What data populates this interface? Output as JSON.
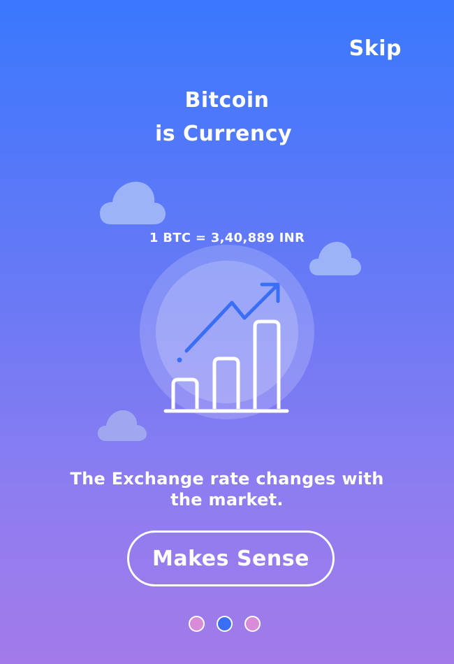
{
  "header": {
    "skip_label": "Skip"
  },
  "onboarding": {
    "title_line1": "Bitcoin",
    "title_line2": "is Currency",
    "exchange_rate": "1 BTC = 3,40,889 INR",
    "description": "The Exchange rate changes with the market.",
    "cta_label": "Makes Sense",
    "illustration_icon": "growth-chart-icon",
    "cloud_icon": "cloud-icon"
  },
  "pagination": {
    "total": 3,
    "active_index": 1,
    "dots": [
      {
        "state": "inactive",
        "color": "#d98ad9"
      },
      {
        "state": "active",
        "color": "#3a6ff5"
      },
      {
        "state": "inactive",
        "color": "#d98ad9"
      }
    ]
  },
  "colors": {
    "gradient_top": "#3a78fd",
    "gradient_bottom": "#a37ae9",
    "accent": "#3a6ff5",
    "cloud": "#9db3f7"
  }
}
